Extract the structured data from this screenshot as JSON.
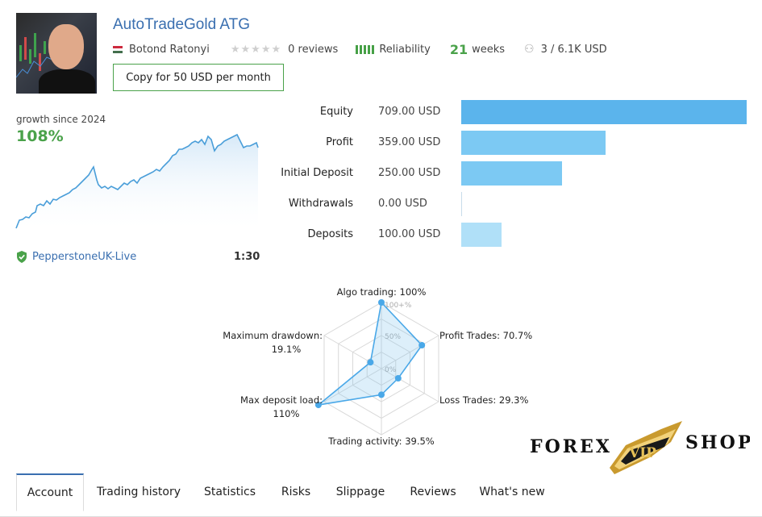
{
  "header": {
    "title": "AutoTradeGold ATG",
    "author": "Botond Ratonyi",
    "reviews": "0 reviews",
    "reliability_label": "Reliability",
    "weeks_num": "21",
    "weeks_label": "weeks",
    "subscribers": "3 / 6.1K USD",
    "copy_button": "Copy for 50 USD per month",
    "colors": {
      "title": "#3a6fb0",
      "accent_green": "#4aa24a"
    }
  },
  "growth": {
    "label": "growth since 2024",
    "value": "108%",
    "server": "PepperstoneUK-Live",
    "leverage": "1:30"
  },
  "financials": [
    {
      "label": "Equity",
      "value": "709.00 USD",
      "amount": 709.0,
      "color": "#5bb4ec"
    },
    {
      "label": "Profit",
      "value": "359.00 USD",
      "amount": 359.0,
      "color": "#7cc9f3"
    },
    {
      "label": "Initial Deposit",
      "value": "250.00 USD",
      "amount": 250.0,
      "color": "#7cc9f3"
    },
    {
      "label": "Withdrawals",
      "value": "0.00 USD",
      "amount": 0.0,
      "color": "#9ed6f5"
    },
    {
      "label": "Deposits",
      "value": "100.00 USD",
      "amount": 100.0,
      "color": "#b0e0f8"
    }
  ],
  "radar": {
    "ticks": [
      "100+%",
      "50%",
      "0%"
    ],
    "axes": [
      {
        "label": "Algo trading: 100%",
        "value": 1.0
      },
      {
        "label": "Profit Trades: 70.7%",
        "value": 0.707
      },
      {
        "label": "Loss Trades: 29.3%",
        "value": 0.293
      },
      {
        "label": "Trading activity: 39.5%",
        "value": 0.395
      },
      {
        "label": "Max deposit load:",
        "label2": "110%",
        "value": 1.1
      },
      {
        "label": "Maximum drawdown:",
        "label2": "19.1%",
        "value": 0.191
      }
    ]
  },
  "logo": {
    "left": "FOREX",
    "center": "VIP",
    "right": "SHOP"
  },
  "tabs": [
    "Account",
    "Trading history",
    "Statistics",
    "Risks",
    "Slippage",
    "Reviews",
    "What's new"
  ]
}
